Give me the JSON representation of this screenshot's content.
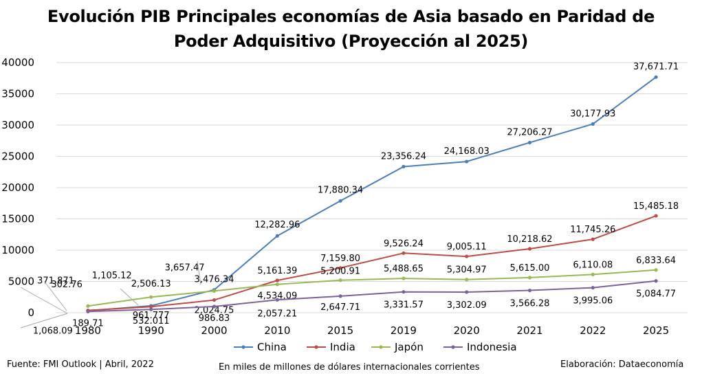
{
  "chart_data": {
    "type": "line",
    "title_line1": "Evolución PIB Principales economías de Asia basado en Paridad de",
    "title_line2": "Poder Adquisitivo (Proyección al 2025)",
    "categories": [
      "1980",
      "1990",
      "2000",
      "2010",
      "2015",
      "2019",
      "2020",
      "2021",
      "2022",
      "2025"
    ],
    "ylim": [
      0,
      40000
    ],
    "yticks": [
      "0",
      "5000",
      "10000",
      "15000",
      "20000",
      "25000",
      "30000",
      "35000",
      "40000"
    ],
    "grid": true,
    "legend_position": "bottom",
    "series": [
      {
        "name": "China",
        "color": "#4A7EBB",
        "values": [
          302.76,
          1105.12,
          3657.47,
          12282.96,
          17880.34,
          23356.24,
          24168.03,
          27206.27,
          30177.93,
          37671.71
        ],
        "labels": [
          "302.76",
          "1,105.12",
          "3,657.47",
          "12,282.96",
          "17,880.34",
          "23,356.24",
          "24,168.03",
          "27,206.27",
          "30,177.93",
          "37,671.71"
        ]
      },
      {
        "name": "India",
        "color": "#BE4B48",
        "values": [
          371.871,
          961.777,
          2024.75,
          5161.39,
          7159.8,
          9526.24,
          9005.11,
          10218.62,
          11745.26,
          15485.18
        ],
        "labels": [
          "371.871",
          "961.777",
          "2,024.75",
          "5,161.39",
          "7,159.80",
          "9,526.24",
          "9,005.11",
          "10,218.62",
          "11,745.26",
          "15,485.18"
        ]
      },
      {
        "name": "Japón",
        "color": "#98B954",
        "values": [
          1068.09,
          2506.13,
          3476.34,
          4534.09,
          5200.91,
          5488.65,
          5304.97,
          5615.0,
          6110.08,
          6833.64
        ],
        "labels": [
          "1,068.09",
          "2,506.13",
          "3,476.34",
          "4,534.09",
          "5,200.91",
          "5,488.65",
          "5,304.97",
          "5,615.00",
          "6,110.08",
          "6,833.64"
        ]
      },
      {
        "name": "Indonesia",
        "color": "#7D60A0",
        "values": [
          189.71,
          532.011,
          986.83,
          2057.21,
          2647.71,
          3331.57,
          3302.09,
          3566.28,
          3995.06,
          5084.77
        ],
        "labels": [
          "189.71",
          "532.011",
          "986.83",
          "2,057.21",
          "2,647.71",
          "3,331.57",
          "3,302.09",
          "3,566.28",
          "3,995.06",
          "5,084.77"
        ]
      }
    ]
  },
  "footer": {
    "source": "Fuente: FMI Outlook | Abril, 2022",
    "units": "En miles de millones de dólares internacionales corrientes",
    "credit": "Elaboración: Dataeconomía"
  }
}
